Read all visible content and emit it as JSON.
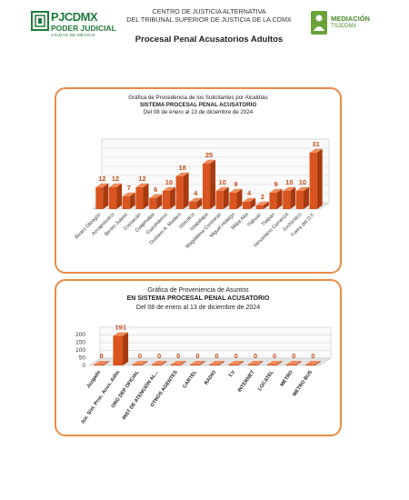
{
  "header": {
    "logo_left_text": "PJCDMX",
    "logo_left_sub": "PODER JUDICIAL",
    "logo_left_sub2": "CIUDAD DE MÉXICO",
    "line1": "CENTRO DE JUSTICIA ALTERNATIVA",
    "line2": "DEL TRIBUNAL SUPERIOR DE JUSTICIA DE LA CDMX",
    "subtitle": "Procesal Penal Acusatorios Adultos",
    "logo_right_text": "MEDIACIÓN",
    "logo_right_sub": "TSJCDMX"
  },
  "colors": {
    "accent": "#e98b45",
    "bar": "#d9541f",
    "bar_dark": "#a83a10",
    "green": "#1f7a3a"
  },
  "chart_data": [
    {
      "type": "bar",
      "title": "Gráfica de Procedencia de los Solicitantes por Alcaldías",
      "subtitle": "SISTEMA PROCESAL PENAL ACUSATORIO",
      "date_range": "Del  08 de enero  al  13 de diciembre de  2024",
      "categories": [
        "Álvaro Obregón",
        "Azcapotzalco",
        "Benito Juárez",
        "Coyoacán",
        "Cuajimalpa",
        "Cuauhtémoc",
        "Gustavo A. Madero",
        "Iztacalco",
        "Iztapalapa",
        "Magdalena Contreras",
        "Miguel Hidalgo",
        "Milpa Alta",
        "Tláhuac",
        "Tlalpan",
        "Venustiano Carranza",
        "Xochimilco",
        "Fuera del D.F."
      ],
      "values": [
        12,
        12,
        7,
        12,
        6,
        10,
        18,
        4,
        25,
        10,
        9,
        4,
        2,
        9,
        10,
        10,
        31
      ],
      "ylim": [
        0,
        35
      ],
      "grid": true,
      "legend": "none"
    },
    {
      "type": "bar",
      "title": "Gráfica de Proveniencia de Asuntos",
      "subtitle": "EN SISTEMA PROCESAL PENAL ACUSATORIO",
      "date_range": "Del  08 de enero  al  13  de diciembre de  2024",
      "categories": [
        "Juzgado",
        "Juz. Sist. Proc. Acus. Adlts",
        "ORG DEP OFICIAL",
        "INST DE ATENCIÓN AL...",
        "OTROS AGENTES",
        "CARTEL",
        "RADIO",
        "T.V",
        "INTERNET",
        "LOCATEL",
        "METRO",
        "METRO BUS"
      ],
      "values": [
        0,
        191,
        0,
        0,
        0,
        0,
        0,
        0,
        0,
        0,
        0,
        0
      ],
      "yticks": [
        "0",
        "50",
        "100",
        "150",
        "200"
      ],
      "ylim": [
        0,
        200
      ],
      "grid": true,
      "legend": "none"
    }
  ]
}
